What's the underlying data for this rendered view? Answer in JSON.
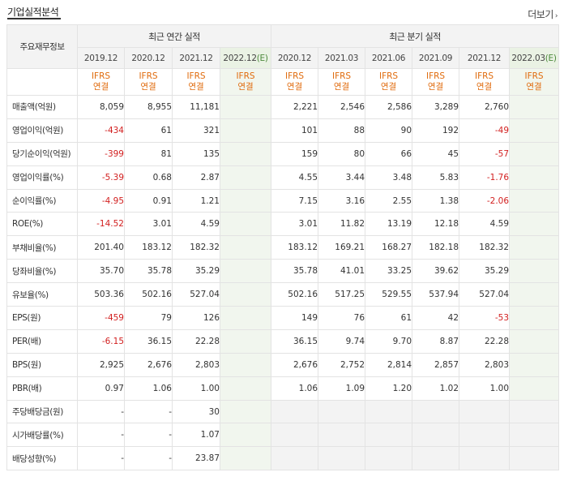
{
  "title": "기업실적분석",
  "more_label": "더보기",
  "header": {
    "row_label": "주요재무정보",
    "annual_group": "최근 연간 실적",
    "quarter_group": "최근 분기 실적",
    "annual_periods": [
      "2019.12",
      "2020.12",
      "2021.12",
      "2022.12(E)"
    ],
    "quarter_periods": [
      "2020.12",
      "2021.03",
      "2021.06",
      "2021.09",
      "2021.12",
      "2022.03(E)"
    ],
    "standard_line1": "IFRS",
    "standard_line2": "연결"
  },
  "rows": [
    {
      "label": "매출액(억원)",
      "annual": [
        "8,059",
        "8,955",
        "11,181",
        ""
      ],
      "quarter": [
        "2,221",
        "2,546",
        "2,586",
        "3,289",
        "2,760",
        ""
      ]
    },
    {
      "label": "영업이익(억원)",
      "annual": [
        "-434",
        "61",
        "321",
        ""
      ],
      "quarter": [
        "101",
        "88",
        "90",
        "192",
        "-49",
        ""
      ]
    },
    {
      "label": "당기순이익(억원)",
      "annual": [
        "-399",
        "81",
        "135",
        ""
      ],
      "quarter": [
        "159",
        "80",
        "66",
        "45",
        "-57",
        ""
      ]
    },
    {
      "label": "영업이익률(%)",
      "annual": [
        "-5.39",
        "0.68",
        "2.87",
        ""
      ],
      "quarter": [
        "4.55",
        "3.44",
        "3.48",
        "5.83",
        "-1.76",
        ""
      ]
    },
    {
      "label": "순이익률(%)",
      "annual": [
        "-4.95",
        "0.91",
        "1.21",
        ""
      ],
      "quarter": [
        "7.15",
        "3.16",
        "2.55",
        "1.38",
        "-2.06",
        ""
      ]
    },
    {
      "label": "ROE(%)",
      "annual": [
        "-14.52",
        "3.01",
        "4.59",
        ""
      ],
      "quarter": [
        "3.01",
        "11.82",
        "13.19",
        "12.18",
        "4.59",
        ""
      ]
    },
    {
      "label": "부채비율(%)",
      "annual": [
        "201.40",
        "183.12",
        "182.32",
        ""
      ],
      "quarter": [
        "183.12",
        "169.21",
        "168.27",
        "182.18",
        "182.32",
        ""
      ]
    },
    {
      "label": "당좌비율(%)",
      "annual": [
        "35.70",
        "35.78",
        "35.29",
        ""
      ],
      "quarter": [
        "35.78",
        "41.01",
        "33.25",
        "39.62",
        "35.29",
        ""
      ]
    },
    {
      "label": "유보율(%)",
      "annual": [
        "503.36",
        "502.16",
        "527.04",
        ""
      ],
      "quarter": [
        "502.16",
        "517.25",
        "529.55",
        "537.94",
        "527.04",
        ""
      ]
    },
    {
      "label": "EPS(원)",
      "annual": [
        "-459",
        "79",
        "126",
        ""
      ],
      "quarter": [
        "149",
        "76",
        "61",
        "42",
        "-53",
        ""
      ]
    },
    {
      "label": "PER(배)",
      "annual": [
        "-6.15",
        "36.15",
        "22.28",
        ""
      ],
      "quarter": [
        "36.15",
        "9.74",
        "9.70",
        "8.87",
        "22.28",
        ""
      ]
    },
    {
      "label": "BPS(원)",
      "annual": [
        "2,925",
        "2,676",
        "2,803",
        ""
      ],
      "quarter": [
        "2,676",
        "2,752",
        "2,814",
        "2,857",
        "2,803",
        ""
      ]
    },
    {
      "label": "PBR(배)",
      "annual": [
        "0.97",
        "1.06",
        "1.00",
        ""
      ],
      "quarter": [
        "1.06",
        "1.09",
        "1.20",
        "1.02",
        "1.00",
        ""
      ]
    },
    {
      "label": "주당배당금(원)",
      "annual": [
        "-",
        "-",
        "30",
        ""
      ],
      "quarter": null
    },
    {
      "label": "시가배당률(%)",
      "annual": [
        "-",
        "-",
        "1.07",
        ""
      ],
      "quarter": null
    },
    {
      "label": "배당성향(%)",
      "annual": [
        "-",
        "-",
        "23.87",
        ""
      ],
      "quarter": null
    }
  ],
  "colors": {
    "negative": "#d21f1f",
    "standard": "#e06b0d",
    "estimate_bg": "#f1f6ee"
  }
}
